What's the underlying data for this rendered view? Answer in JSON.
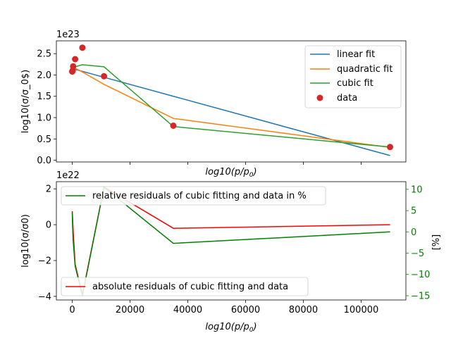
{
  "chart_data": [
    {
      "type": "line",
      "panel": "top",
      "offset_label": "1e23",
      "xlabel": "log10(p/p0)",
      "ylabel": "log10(σ/σ_0$)",
      "ylim": [
        -0.04,
        2.8
      ],
      "y_ticks": [
        0.0,
        0.5,
        1.0,
        1.5,
        2.0,
        2.5
      ],
      "y_tick_labels": [
        "0.0",
        "0.5",
        "1.0",
        "1.5",
        "2.0",
        "2.5"
      ],
      "x_tick_labels_hidden": true,
      "xlim": [
        -5500,
        115500
      ],
      "legend_position": "top-right",
      "grid": false,
      "series": [
        {
          "name": "linear fit",
          "color": "#1f77b4",
          "kind": "line",
          "x": [
            0,
            110000
          ],
          "y": [
            2.15,
            0.11
          ]
        },
        {
          "name": "quadratic fit",
          "color": "#ff7f0e",
          "kind": "line",
          "x": [
            0,
            100,
            300,
            1000,
            3500,
            11000,
            35000,
            110000
          ],
          "y": [
            2.18,
            2.18,
            2.17,
            2.16,
            2.07,
            1.78,
            0.98,
            0.3
          ]
        },
        {
          "name": "cubic fit",
          "color": "#2ca02c",
          "kind": "line",
          "x": [
            0,
            100,
            300,
            1000,
            3500,
            11000,
            35000,
            110000
          ],
          "y": [
            2.1,
            2.12,
            2.14,
            2.19,
            2.24,
            2.19,
            0.79,
            0.31
          ]
        },
        {
          "name": "data",
          "color": "#d62728",
          "kind": "scatter",
          "x": [
            0,
            100,
            300,
            1000,
            3500,
            11000,
            35000,
            110000
          ],
          "y": [
            2.08,
            2.1,
            2.2,
            2.37,
            2.64,
            1.97,
            0.81,
            0.31
          ]
        }
      ]
    },
    {
      "type": "line",
      "panel": "bottom",
      "offset_label": "1e22",
      "xlabel": "log10(p/p0)",
      "ylabel": "log10(σ/σ0)",
      "ylim": [
        -4.2,
        2.4
      ],
      "xlim": [
        -5500,
        115500
      ],
      "x_ticks": [
        0,
        20000,
        40000,
        60000,
        80000,
        100000
      ],
      "x_tick_labels": [
        "0",
        "20000",
        "40000",
        "60000",
        "80000",
        "100000"
      ],
      "y_ticks": [
        -4,
        -2,
        0,
        2
      ],
      "y_tick_labels": [
        "−4",
        "−2",
        "0",
        "2"
      ],
      "y2label": "[%]",
      "y2lim": [
        -16,
        11.8
      ],
      "y2_ticks": [
        -15,
        -10,
        -5,
        0,
        5,
        10
      ],
      "y2_tick_labels": [
        "−15",
        "−10",
        "−5",
        "0",
        "5",
        "10"
      ],
      "y2_color": "#008000",
      "grid": false,
      "series": [
        {
          "name": "absolute residuals of cubic fitting and data",
          "color": "#ff0000",
          "axis": "left",
          "legend_position": "lower-left",
          "x": [
            0,
            100,
            300,
            1000,
            3500,
            11000,
            35000,
            110000
          ],
          "y": [
            0.75,
            0.4,
            -0.3,
            -2.2,
            -3.9,
            2.1,
            -0.2,
            0.0
          ]
        },
        {
          "name": "relative residuals of cubic fitting and data in %",
          "color": "#008000",
          "axis": "right",
          "legend_position": "upper-left",
          "x": [
            0,
            100,
            300,
            1000,
            3500,
            11000,
            35000,
            110000
          ],
          "y": [
            4.5,
            1.5,
            -2.0,
            -8.0,
            -15.0,
            10.5,
            -2.7,
            0.0
          ]
        }
      ]
    }
  ]
}
